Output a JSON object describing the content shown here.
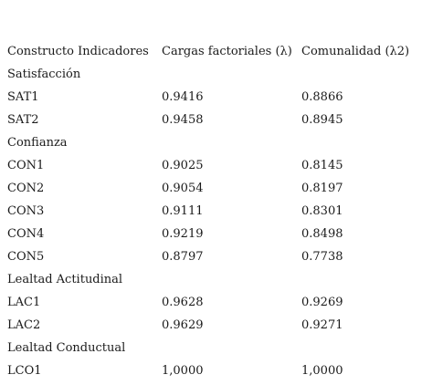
{
  "table": {
    "headers": [
      "Constructo Indicadores",
      "Cargas factoriales (λ)",
      "Comunalidad (λ2)"
    ],
    "groups": [
      {
        "name": "Satisfacción",
        "rows": [
          {
            "indicator": "SAT1",
            "loading": "0.9416",
            "communality": "0.8866"
          },
          {
            "indicator": "SAT2",
            "loading": "0.9458",
            "communality": "0.8945"
          }
        ]
      },
      {
        "name": "Confianza",
        "rows": [
          {
            "indicator": "CON1",
            "loading": "0.9025",
            "communality": "0.8145"
          },
          {
            "indicator": "CON2",
            "loading": "0.9054",
            "communality": "0.8197"
          },
          {
            "indicator": "CON3",
            "loading": "0.9111",
            "communality": "0.8301"
          },
          {
            "indicator": "CON4",
            "loading": "0.9219",
            "communality": "0.8498"
          },
          {
            "indicator": "CON5",
            "loading": "0.8797",
            "communality": "0.7738"
          }
        ]
      },
      {
        "name": "Lealtad Actitudinal",
        "rows": [
          {
            "indicator": "LAC1",
            "loading": "0.9628",
            "communality": "0.9269"
          },
          {
            "indicator": "LAC2",
            "loading": "0.9629",
            "communality": "0.9271"
          }
        ]
      },
      {
        "name": "Lealtad Conductual",
        "rows": [
          {
            "indicator": "LCO1",
            "loading": "1,0000",
            "communality": "1,0000"
          }
        ]
      }
    ]
  }
}
